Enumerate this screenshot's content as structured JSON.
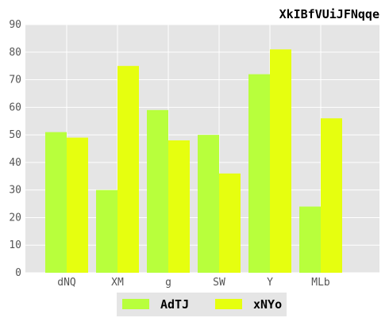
{
  "chart_data": {
    "type": "bar",
    "title": "XkIBfVUiJFNqqe",
    "xlabel": "",
    "ylabel": "",
    "categories": [
      "dNQ",
      "XM",
      "g",
      "SW",
      "Y",
      "MLb"
    ],
    "series": [
      {
        "name": "AdTJ",
        "values": [
          51,
          30,
          59,
          50,
          72,
          24
        ],
        "color": "#b8ff3c"
      },
      {
        "name": "xNYo",
        "values": [
          49,
          75,
          48,
          36,
          81,
          56
        ],
        "color": "#e6ff0f"
      }
    ],
    "ylim": [
      0,
      90
    ],
    "yticks": [
      0,
      10,
      20,
      30,
      40,
      50,
      60,
      70,
      80,
      90
    ],
    "grid": true,
    "legend_position": "bottom-center",
    "plot_background": "#e5e5e5",
    "grid_color": "#ffffff"
  }
}
